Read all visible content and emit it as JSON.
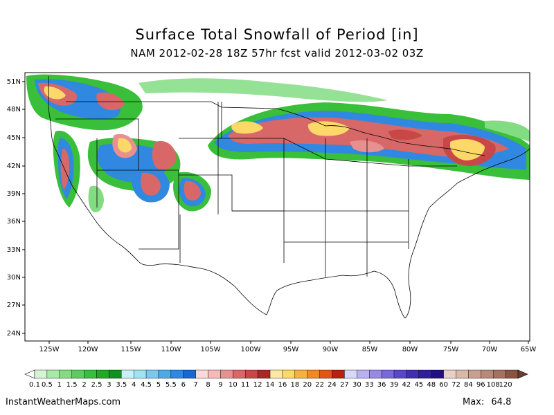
{
  "title": "Surface Total Snowfall of Period [in]",
  "subtitle": "NAM 2012-02-28 18Z 57hr fcst valid 2012-03-02 03Z",
  "lat_labels": [
    "51N",
    "48N",
    "45N",
    "42N",
    "39N",
    "36N",
    "33N",
    "30N",
    "27N",
    "24N"
  ],
  "lon_labels": [
    "125W",
    "120W",
    "115W",
    "110W",
    "105W",
    "100W",
    "95W",
    "90W",
    "85W",
    "80W",
    "75W",
    "70W",
    "65W"
  ],
  "legend": {
    "labels": [
      "0.1",
      "0.5",
      "1",
      "1.5",
      "2",
      "2.5",
      "3",
      "3.5",
      "4",
      "4.5",
      "5",
      "5.5",
      "6",
      "7",
      "8",
      "9",
      "10",
      "11",
      "12",
      "14",
      "16",
      "18",
      "20",
      "22",
      "24",
      "27",
      "30",
      "33",
      "36",
      "39",
      "42",
      "45",
      "48",
      "60",
      "72",
      "84",
      "96",
      "108",
      "120"
    ],
    "colors": [
      "#d4f5d4",
      "#a8e8a8",
      "#82dc82",
      "#5ccd5c",
      "#39bf39",
      "#22a822",
      "#12901a",
      "#c8f0f8",
      "#a0e4f4",
      "#78c8f0",
      "#50a8e8",
      "#3088e0",
      "#1868d0",
      "#fcd8d8",
      "#f8b8b8",
      "#e89090",
      "#d86868",
      "#c84848",
      "#a82828",
      "#fce8a0",
      "#fcd868",
      "#f8b040",
      "#f08828",
      "#e05818",
      "#b82010",
      "#d8d8f8",
      "#b8b0f0",
      "#9888e8",
      "#7868d8",
      "#5848c8",
      "#4030b0",
      "#302098",
      "#201080",
      "#e8d0c8",
      "#d8b8a8",
      "#c8a090",
      "#b88878",
      "#a87060",
      "#8a5440"
    ]
  },
  "footer": {
    "source": "InstantWeatherMaps.com",
    "max_label": "Max:",
    "max_value": "64.8"
  }
}
